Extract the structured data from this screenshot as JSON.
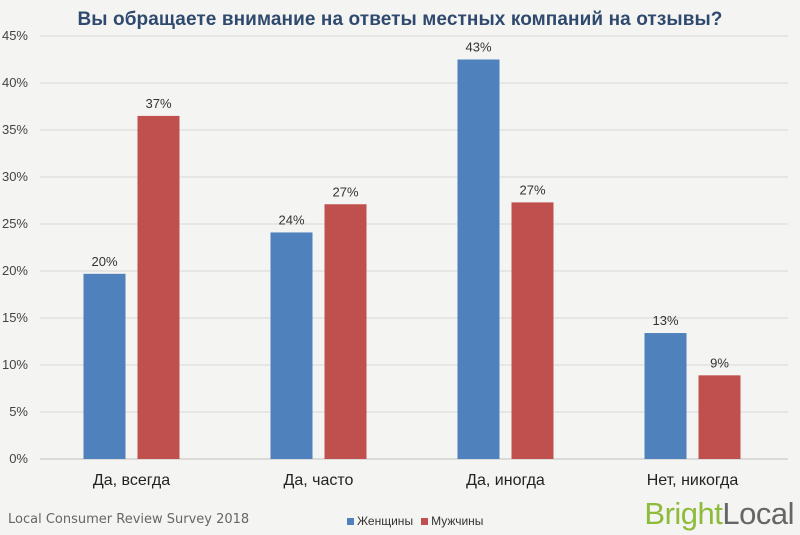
{
  "title": "Вы обращаете внимание на ответы местных компаний на отзывы?",
  "source": "Local Consumer Review Survey 2018",
  "brand": {
    "part1": "Bright",
    "part2": "Local"
  },
  "colors": {
    "women": "#4f81bd",
    "men": "#c0504d",
    "grid": "#d9d9d9",
    "brand_green": "#8dbb3a"
  },
  "legend": [
    {
      "label": "Женщины",
      "color": "#4f81bd"
    },
    {
      "label": "Мужчины",
      "color": "#c0504d"
    }
  ],
  "chart_data": {
    "type": "bar",
    "title": "Вы обращаете внимание на ответы местных компаний на отзывы?",
    "categories": [
      "Да, всегда",
      "Да, часто",
      "Да, иногда",
      "Нет, никогда"
    ],
    "series": [
      {
        "name": "Женщины",
        "values": [
          19.7,
          24.1,
          42.5,
          13.4
        ],
        "labels": [
          "20%",
          "24%",
          "43%",
          "13%"
        ]
      },
      {
        "name": "Мужчины",
        "values": [
          36.5,
          27.1,
          27.3,
          8.9
        ],
        "labels": [
          "37%",
          "27%",
          "27%",
          "9%"
        ]
      }
    ],
    "ylim": [
      0,
      45
    ],
    "yticks": [
      "0%",
      "5%",
      "10%",
      "15%",
      "20%",
      "25%",
      "30%",
      "35%",
      "40%",
      "45%"
    ],
    "grid": true,
    "legend_position": "bottom"
  }
}
